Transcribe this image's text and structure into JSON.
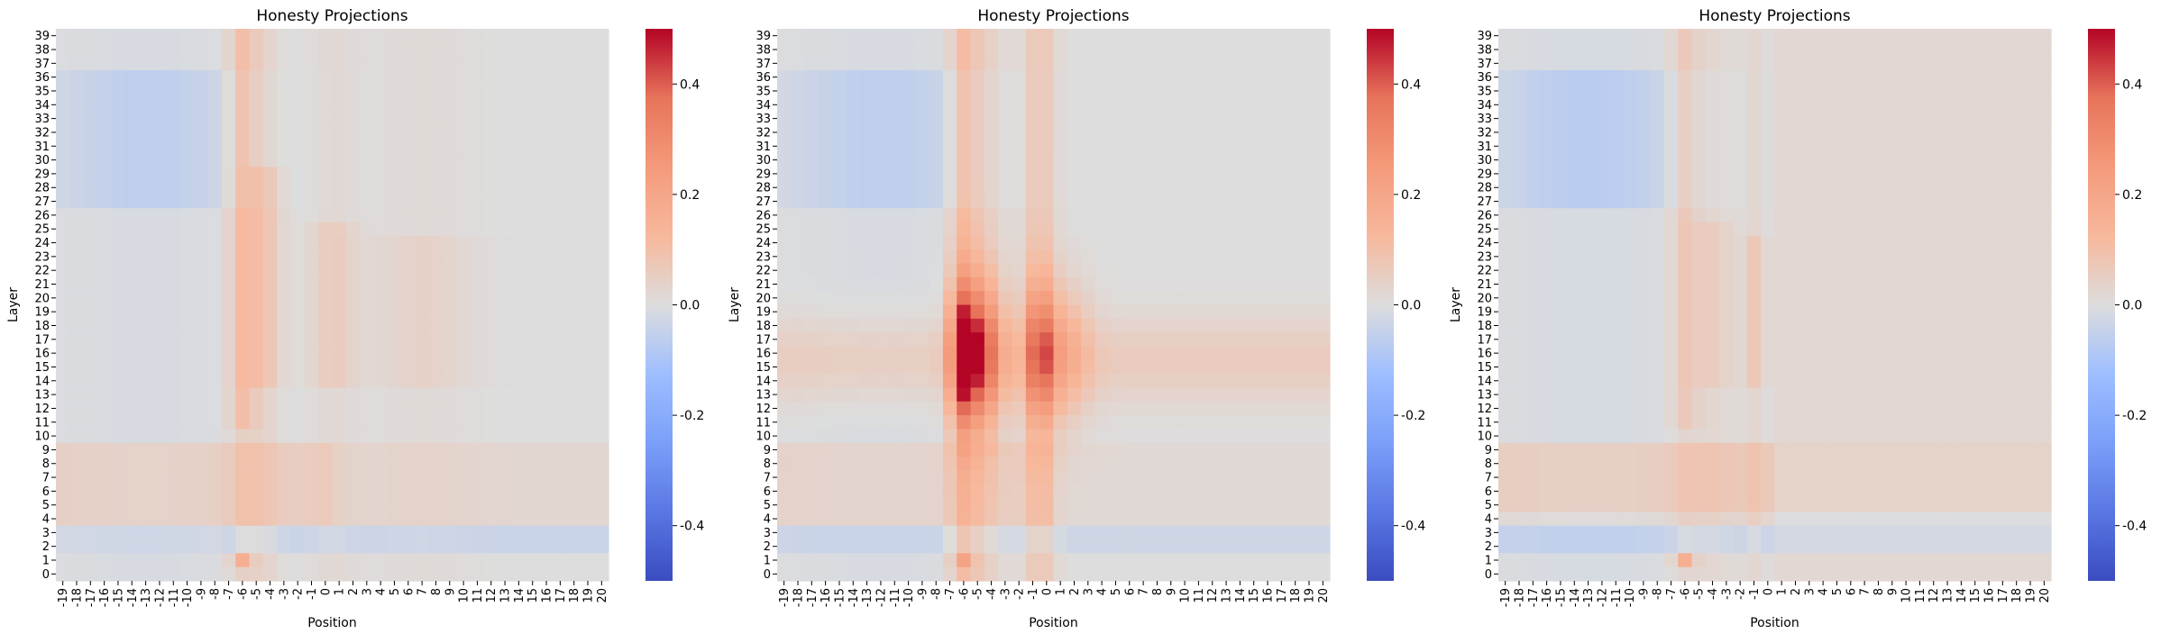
{
  "chart_data": [
    {
      "type": "heatmap",
      "title": "Honesty Projections",
      "xlabel": "Position",
      "ylabel": "Layer",
      "x_ticks": [
        "-19",
        "-18",
        "-17",
        "-16",
        "-15",
        "-14",
        "-13",
        "-12",
        "-11",
        "-10",
        "-9",
        "-8",
        "-7",
        "-6",
        "-5",
        "-4",
        "-3",
        "-2",
        "-1",
        "0",
        "1",
        "2",
        "3",
        "4",
        "5",
        "6",
        "7",
        "8",
        "9",
        "10",
        "11",
        "12",
        "13",
        "14",
        "15",
        "16",
        "17",
        "18",
        "19",
        "20"
      ],
      "y_ticks": [
        "39",
        "38",
        "37",
        "36",
        "35",
        "34",
        "33",
        "32",
        "31",
        "30",
        "29",
        "28",
        "27",
        "26",
        "25",
        "24",
        "23",
        "22",
        "21",
        "20",
        "19",
        "18",
        "17",
        "16",
        "15",
        "14",
        "13",
        "12",
        "11",
        "10",
        "9",
        "8",
        "7",
        "6",
        "5",
        "4",
        "3",
        "2",
        "1",
        "0"
      ],
      "vmin": -0.5,
      "vmax": 0.5,
      "colorbar_ticks": [
        "0.4",
        "0.2",
        "0.0",
        "-0.2",
        "-0.4"
      ],
      "colormap": "coolwarm"
    },
    {
      "type": "heatmap",
      "title": "Honesty Projections",
      "xlabel": "Position",
      "ylabel": "Layer",
      "x_ticks": [
        "-19",
        "-18",
        "-17",
        "-16",
        "-15",
        "-14",
        "-13",
        "-12",
        "-11",
        "-10",
        "-9",
        "-8",
        "-7",
        "-6",
        "-5",
        "-4",
        "-3",
        "-2",
        "-1",
        "0",
        "1",
        "2",
        "3",
        "4",
        "5",
        "6",
        "7",
        "8",
        "9",
        "10",
        "11",
        "12",
        "13",
        "14",
        "15",
        "16",
        "17",
        "18",
        "19",
        "20"
      ],
      "y_ticks": [
        "39",
        "38",
        "37",
        "36",
        "35",
        "34",
        "33",
        "32",
        "31",
        "30",
        "29",
        "28",
        "27",
        "26",
        "25",
        "24",
        "23",
        "22",
        "21",
        "20",
        "19",
        "18",
        "17",
        "16",
        "15",
        "14",
        "13",
        "12",
        "11",
        "10",
        "9",
        "8",
        "7",
        "6",
        "5",
        "4",
        "3",
        "2",
        "1",
        "0"
      ],
      "vmin": -0.5,
      "vmax": 0.5,
      "colorbar_ticks": [
        "0.4",
        "0.2",
        "0.0",
        "-0.2",
        "-0.4"
      ],
      "colormap": "coolwarm"
    },
    {
      "type": "heatmap",
      "title": "Honesty Projections",
      "xlabel": "Position",
      "ylabel": "Layer",
      "x_ticks": [
        "-19",
        "-18",
        "-17",
        "-16",
        "-15",
        "-14",
        "-13",
        "-12",
        "-11",
        "-10",
        "-9",
        "-8",
        "-7",
        "-6",
        "-5",
        "-4",
        "-3",
        "-2",
        "-1",
        "0",
        "1",
        "2",
        "3",
        "4",
        "5",
        "6",
        "7",
        "8",
        "9",
        "10",
        "11",
        "12",
        "13",
        "14",
        "15",
        "16",
        "17",
        "18",
        "19",
        "20"
      ],
      "y_ticks": [
        "39",
        "38",
        "37",
        "36",
        "35",
        "34",
        "33",
        "32",
        "31",
        "30",
        "29",
        "28",
        "27",
        "26",
        "25",
        "24",
        "23",
        "22",
        "21",
        "20",
        "19",
        "18",
        "17",
        "16",
        "15",
        "14",
        "13",
        "12",
        "11",
        "10",
        "9",
        "8",
        "7",
        "6",
        "5",
        "4",
        "3",
        "2",
        "1",
        "0"
      ],
      "vmin": -0.5,
      "vmax": 0.5,
      "colorbar_ticks": [
        "0.4",
        "0.2",
        "0.0",
        "-0.2",
        "-0.4"
      ],
      "colormap": "coolwarm"
    }
  ]
}
